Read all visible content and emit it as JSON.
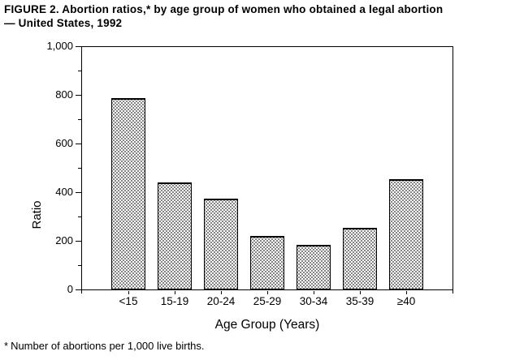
{
  "figure": {
    "title_line1": "FIGURE 2. Abortion ratios,* by age group of women who obtained a legal abortion",
    "title_line2": "— United States, 1992",
    "footnote_marker": "*",
    "footnote_text": "Number of abortions per 1,000 live births."
  },
  "chart_data": {
    "type": "bar",
    "title": "FIGURE 2. Abortion ratios,* by age group of women who obtained a legal abortion — United States, 1992",
    "categories": [
      "<15",
      "15-19",
      "20-24",
      "25-29",
      "30-34",
      "35-39",
      "≥40"
    ],
    "values": [
      790,
      440,
      375,
      220,
      185,
      255,
      455
    ],
    "xlabel": "Age Group (Years)",
    "ylabel": "Ratio",
    "ylim": [
      0,
      1000
    ],
    "y_major_ticks": [
      0,
      200,
      400,
      600,
      800,
      1000
    ],
    "y_major_tick_labels": [
      "0",
      "200",
      "400",
      "600",
      "800",
      "1,000"
    ],
    "y_minor_tick_step": 100,
    "grid": false,
    "legend_position": "none",
    "bar_fill_style": "stipple-dots",
    "bar_border_color": "#000000",
    "text_color": "#000000",
    "background_color": "#ffffff",
    "footnote": "*Number of abortions per 1,000 live births."
  }
}
